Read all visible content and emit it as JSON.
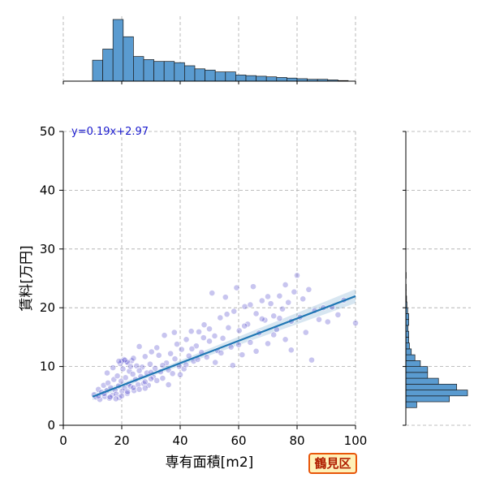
{
  "chart_data": {
    "type": "scatter",
    "xlabel": "専有面積[m2]",
    "ylabel": "賃料[万円]",
    "xlim": [
      0,
      100
    ],
    "ylim": [
      0,
      50
    ],
    "x_ticks": [
      0,
      20,
      40,
      60,
      80,
      100
    ],
    "y_ticks": [
      0,
      10,
      20,
      30,
      40,
      50
    ],
    "grid": true,
    "annotation": "y=0.19x+2.97",
    "regression": {
      "slope": 0.19,
      "intercept": 2.97,
      "x_range": [
        10,
        100
      ]
    },
    "badge": "鶴見区",
    "colors": {
      "points": "#3a2fc4",
      "line": "#1f77b4",
      "hist": "#5a9bd0",
      "annotation": "#1a1acd"
    },
    "marginal_x_hist": {
      "bin_edges": [
        10,
        13.5,
        17,
        20.5,
        24,
        27.5,
        31,
        34.5,
        38,
        41.5,
        45,
        48.5,
        52,
        55.5,
        59,
        62.5,
        66,
        69.5,
        73,
        76.5,
        80,
        83.5,
        87,
        90.5,
        94,
        97.5
      ],
      "counts": [
        34,
        52,
        100,
        72,
        40,
        35,
        32,
        32,
        30,
        25,
        20,
        18,
        15,
        15,
        10,
        9,
        8,
        7,
        6,
        5,
        4,
        3,
        3,
        2,
        1
      ]
    },
    "marginal_y_hist": {
      "bin_edges": [
        3,
        4,
        5,
        6,
        7,
        8,
        9,
        10,
        11,
        12,
        13,
        14,
        15,
        16,
        17,
        18,
        19,
        20,
        21,
        22,
        23,
        24,
        25,
        26
      ],
      "counts": [
        30,
        120,
        170,
        140,
        90,
        60,
        60,
        40,
        25,
        15,
        10,
        8,
        8,
        6,
        8,
        8,
        5,
        3,
        2,
        1,
        1,
        0,
        1
      ]
    },
    "points": [
      {
        "x": 10.5,
        "y": 5.2
      },
      {
        "x": 11.2,
        "y": 4.8
      },
      {
        "x": 12.0,
        "y": 6.1
      },
      {
        "x": 12.5,
        "y": 4.4
      },
      {
        "x": 13.1,
        "y": 5.6
      },
      {
        "x": 13.8,
        "y": 6.8
      },
      {
        "x": 14.2,
        "y": 4.9
      },
      {
        "x": 14.9,
        "y": 5.9
      },
      {
        "x": 15.3,
        "y": 7.2
      },
      {
        "x": 15.8,
        "y": 4.6
      },
      {
        "x": 16.2,
        "y": 6.4
      },
      {
        "x": 16.8,
        "y": 5.1
      },
      {
        "x": 17.3,
        "y": 7.8
      },
      {
        "x": 17.7,
        "y": 6.0
      },
      {
        "x": 18.1,
        "y": 5.3
      },
      {
        "x": 18.5,
        "y": 8.4
      },
      {
        "x": 18.9,
        "y": 6.7
      },
      {
        "x": 19.2,
        "y": 4.7
      },
      {
        "x": 19.5,
        "y": 10.5
      },
      {
        "x": 19.8,
        "y": 7.5
      },
      {
        "x": 20.1,
        "y": 5.8
      },
      {
        "x": 20.4,
        "y": 9.6
      },
      {
        "x": 20.7,
        "y": 11.2
      },
      {
        "x": 21.0,
        "y": 6.3
      },
      {
        "x": 21.3,
        "y": 8.1
      },
      {
        "x": 21.6,
        "y": 10.8
      },
      {
        "x": 21.9,
        "y": 5.4
      },
      {
        "x": 22.3,
        "y": 7.0
      },
      {
        "x": 22.6,
        "y": 9.2
      },
      {
        "x": 23.0,
        "y": 6.6
      },
      {
        "x": 23.4,
        "y": 11.0
      },
      {
        "x": 23.8,
        "y": 8.7
      },
      {
        "x": 24.2,
        "y": 5.9
      },
      {
        "x": 24.7,
        "y": 7.8
      },
      {
        "x": 25.1,
        "y": 10.1
      },
      {
        "x": 25.6,
        "y": 6.9
      },
      {
        "x": 26.0,
        "y": 13.4
      },
      {
        "x": 26.5,
        "y": 8.3
      },
      {
        "x": 27.0,
        "y": 9.9
      },
      {
        "x": 27.5,
        "y": 7.1
      },
      {
        "x": 28.0,
        "y": 11.7
      },
      {
        "x": 28.6,
        "y": 8.9
      },
      {
        "x": 29.1,
        "y": 6.8
      },
      {
        "x": 29.7,
        "y": 10.4
      },
      {
        "x": 30.2,
        "y": 12.5
      },
      {
        "x": 30.8,
        "y": 8.2
      },
      {
        "x": 31.4,
        "y": 9.7
      },
      {
        "x": 32.0,
        "y": 7.6
      },
      {
        "x": 32.7,
        "y": 11.9
      },
      {
        "x": 33.3,
        "y": 9.1
      },
      {
        "x": 34.0,
        "y": 8.0
      },
      {
        "x": 34.6,
        "y": 15.3
      },
      {
        "x": 35.3,
        "y": 10.6
      },
      {
        "x": 36.0,
        "y": 9.4
      },
      {
        "x": 36.7,
        "y": 12.2
      },
      {
        "x": 37.4,
        "y": 8.8
      },
      {
        "x": 38.2,
        "y": 11.3
      },
      {
        "x": 38.9,
        "y": 13.8
      },
      {
        "x": 39.7,
        "y": 10.0
      },
      {
        "x": 40.5,
        "y": 12.9
      },
      {
        "x": 41.3,
        "y": 9.6
      },
      {
        "x": 42.1,
        "y": 14.6
      },
      {
        "x": 43.0,
        "y": 11.8
      },
      {
        "x": 43.8,
        "y": 16.0
      },
      {
        "x": 44.6,
        "y": 10.9
      },
      {
        "x": 45.5,
        "y": 13.5
      },
      {
        "x": 46.4,
        "y": 15.9
      },
      {
        "x": 47.3,
        "y": 12.4
      },
      {
        "x": 48.2,
        "y": 17.1
      },
      {
        "x": 49.1,
        "y": 11.6
      },
      {
        "x": 50.0,
        "y": 14.3
      },
      {
        "x": 50.9,
        "y": 22.5
      },
      {
        "x": 51.8,
        "y": 15.2
      },
      {
        "x": 52.8,
        "y": 12.7
      },
      {
        "x": 53.7,
        "y": 18.3
      },
      {
        "x": 54.6,
        "y": 14.8
      },
      {
        "x": 55.5,
        "y": 21.8
      },
      {
        "x": 56.5,
        "y": 16.6
      },
      {
        "x": 57.4,
        "y": 13.3
      },
      {
        "x": 58.4,
        "y": 19.4
      },
      {
        "x": 59.3,
        "y": 23.4
      },
      {
        "x": 60.2,
        "y": 16.1
      },
      {
        "x": 61.2,
        "y": 12.0
      },
      {
        "x": 62.1,
        "y": 20.2
      },
      {
        "x": 63.1,
        "y": 17.2
      },
      {
        "x": 64.0,
        "y": 14.1
      },
      {
        "x": 65.0,
        "y": 23.6
      },
      {
        "x": 66.0,
        "y": 19.0
      },
      {
        "x": 67.0,
        "y": 15.7
      },
      {
        "x": 68.0,
        "y": 21.2
      },
      {
        "x": 69.0,
        "y": 17.9
      },
      {
        "x": 70.0,
        "y": 13.9
      },
      {
        "x": 71.0,
        "y": 20.7
      },
      {
        "x": 72.0,
        "y": 18.6
      },
      {
        "x": 73.0,
        "y": 16.3
      },
      {
        "x": 74.0,
        "y": 22.0
      },
      {
        "x": 75.0,
        "y": 19.8
      },
      {
        "x": 76.0,
        "y": 14.6
      },
      {
        "x": 77.0,
        "y": 20.9
      },
      {
        "x": 78.0,
        "y": 17.7
      },
      {
        "x": 79.0,
        "y": 22.7
      },
      {
        "x": 80.0,
        "y": 25.5
      },
      {
        "x": 81.0,
        "y": 18.4
      },
      {
        "x": 82.0,
        "y": 21.5
      },
      {
        "x": 83.0,
        "y": 15.8
      },
      {
        "x": 84.0,
        "y": 23.1
      },
      {
        "x": 85.0,
        "y": 11.1
      },
      {
        "x": 86.0,
        "y": 19.5
      },
      {
        "x": 87.5,
        "y": 18.0
      },
      {
        "x": 89.0,
        "y": 20.0
      },
      {
        "x": 90.5,
        "y": 17.6
      },
      {
        "x": 92.0,
        "y": 20.1
      },
      {
        "x": 94.0,
        "y": 18.8
      },
      {
        "x": 96.0,
        "y": 21.3
      },
      {
        "x": 100.0,
        "y": 17.4
      },
      {
        "x": 20.0,
        "y": 10.9
      },
      {
        "x": 22.0,
        "y": 10.7
      },
      {
        "x": 24.0,
        "y": 11.4
      },
      {
        "x": 26.0,
        "y": 9.3
      },
      {
        "x": 28.0,
        "y": 7.4
      },
      {
        "x": 30.0,
        "y": 7.9
      },
      {
        "x": 32.0,
        "y": 13.2
      },
      {
        "x": 34.0,
        "y": 10.2
      },
      {
        "x": 36.0,
        "y": 6.9
      },
      {
        "x": 38.0,
        "y": 15.8
      },
      {
        "x": 40.0,
        "y": 8.6
      },
      {
        "x": 42.0,
        "y": 10.3
      },
      {
        "x": 44.0,
        "y": 13.0
      },
      {
        "x": 46.0,
        "y": 11.2
      },
      {
        "x": 48.0,
        "y": 14.9
      },
      {
        "x": 50.0,
        "y": 16.4
      },
      {
        "x": 52.0,
        "y": 10.7
      },
      {
        "x": 54.0,
        "y": 12.3
      },
      {
        "x": 56.0,
        "y": 18.9
      },
      {
        "x": 58.0,
        "y": 10.2
      },
      {
        "x": 60.0,
        "y": 13.7
      },
      {
        "x": 62.0,
        "y": 16.9
      },
      {
        "x": 64.0,
        "y": 20.5
      },
      {
        "x": 66.0,
        "y": 12.6
      },
      {
        "x": 68.0,
        "y": 18.1
      },
      {
        "x": 70.0,
        "y": 21.9
      },
      {
        "x": 72.0,
        "y": 15.4
      },
      {
        "x": 74.0,
        "y": 18.2
      },
      {
        "x": 76.0,
        "y": 23.9
      },
      {
        "x": 78.0,
        "y": 12.8
      },
      {
        "x": 15.0,
        "y": 8.9
      },
      {
        "x": 17.0,
        "y": 9.8
      },
      {
        "x": 19.0,
        "y": 10.9
      },
      {
        "x": 21.0,
        "y": 11.1
      },
      {
        "x": 23.0,
        "y": 10.0
      },
      {
        "x": 12.0,
        "y": 5.0
      },
      {
        "x": 14.0,
        "y": 5.4
      },
      {
        "x": 16.0,
        "y": 4.8
      },
      {
        "x": 18.0,
        "y": 4.5
      },
      {
        "x": 20.0,
        "y": 5.0
      },
      {
        "x": 22.0,
        "y": 5.7
      },
      {
        "x": 24.0,
        "y": 6.4
      },
      {
        "x": 26.0,
        "y": 6.1
      },
      {
        "x": 28.0,
        "y": 6.3
      },
      {
        "x": 30.0,
        "y": 9.0
      }
    ]
  }
}
